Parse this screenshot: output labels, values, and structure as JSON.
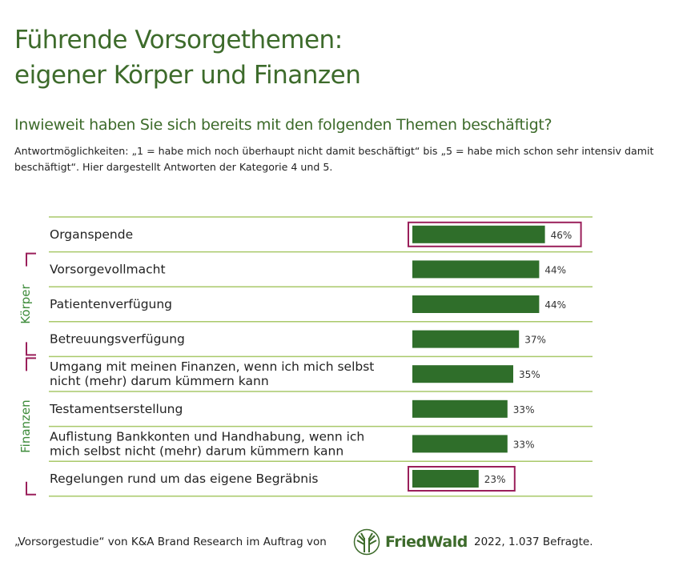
{
  "title_line1": "Führende Vorsorgethemen:",
  "title_line2": "eigener Körper und Finanzen",
  "subtitle": "Inwieweit haben Sie sich bereits mit den folgenden Themen beschäftigt?",
  "description": "Antwortmöglichkeiten: „1 = habe mich noch überhaupt nicht damit beschäftigt“ bis „5 = habe mich schon sehr intensiv damit beschäftigt“. Hier dargestellt Antworten der Kategorie 4 und 5.",
  "footer": {
    "source": "„Vorsorgestudie“ von K&A Brand Research im Auftrag von",
    "logo": "FriedWald",
    "year_sample": "2022, 1.037 Befragte."
  },
  "colors": {
    "bar": "#2f6e2a",
    "grid": "#a9c96a",
    "highlight": "#9a1f5a",
    "group_label": "#3d8b3a"
  },
  "chart_data": {
    "type": "bar",
    "orientation": "horizontal",
    "categories": [
      [
        "Organspende"
      ],
      [
        "Vorsorgevollmacht"
      ],
      [
        "Patientenverfügung"
      ],
      [
        "Betreuungsverfügung"
      ],
      [
        "Umgang mit meinen Finanzen, wenn ich mich selbst",
        "nicht (mehr) darum kümmern kann"
      ],
      [
        "Testamentserstellung"
      ],
      [
        "Auflistung Bankkonten und Handhabung, wenn ich",
        "mich selbst nicht (mehr) darum kümmern kann"
      ],
      [
        "Regelungen rund um das eigene Begräbnis"
      ]
    ],
    "values": [
      46,
      44,
      44,
      37,
      35,
      33,
      33,
      23
    ],
    "value_labels": [
      "46%",
      "44%",
      "44%",
      "37%",
      "35%",
      "33%",
      "33%",
      "23%"
    ],
    "highlighted": [
      0,
      7
    ],
    "groups": [
      {
        "label": "Körper",
        "from": 1,
        "to": 3
      },
      {
        "label": "Finanzen",
        "from": 4,
        "to": 7
      }
    ],
    "unit": "%"
  }
}
